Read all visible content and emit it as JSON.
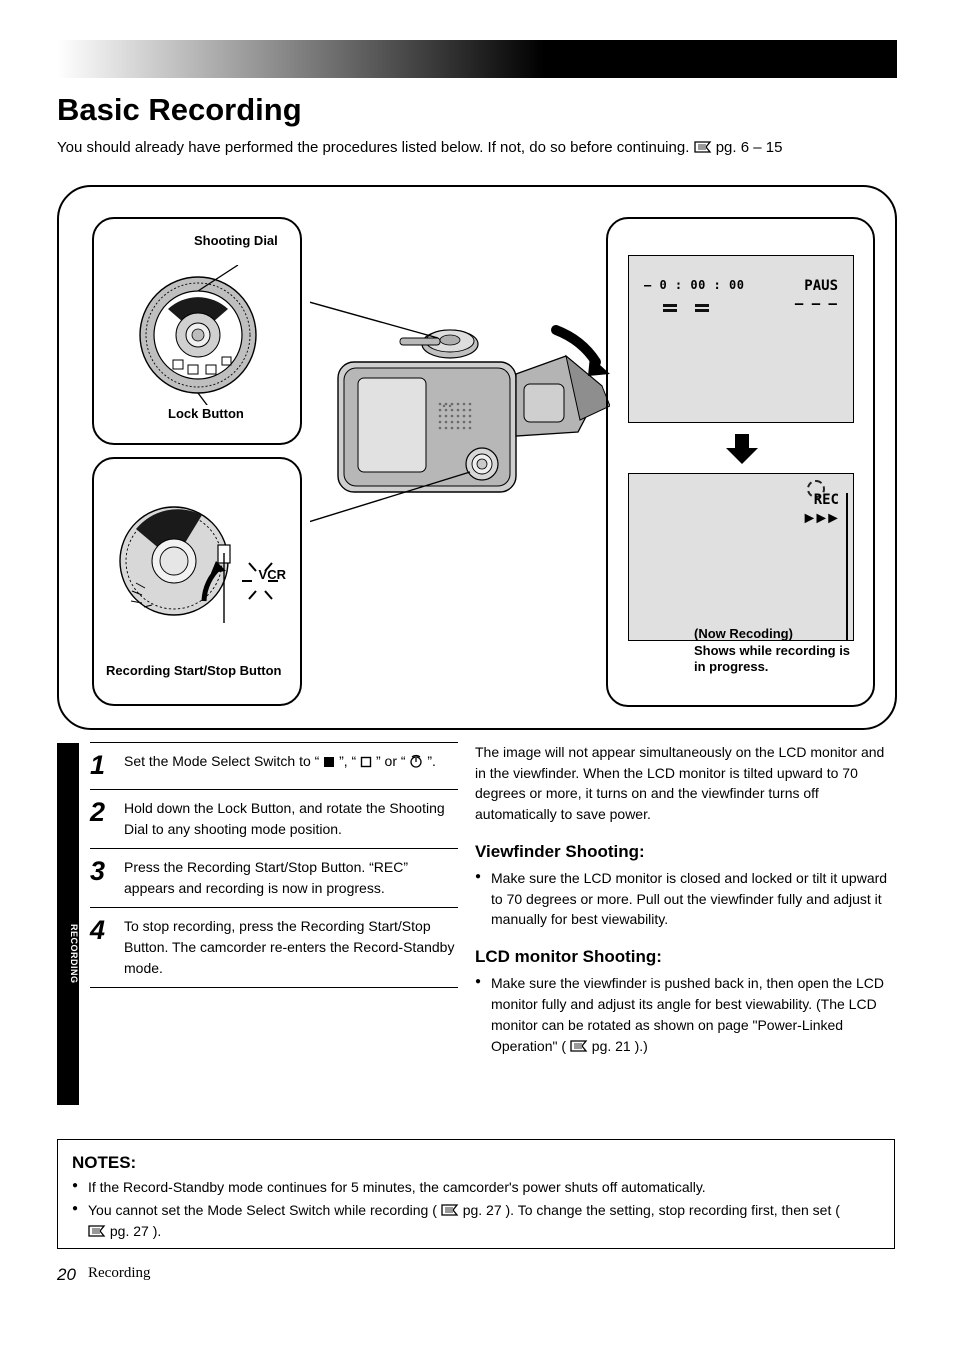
{
  "header": {
    "title": "Basic Recording",
    "intro_pre": "You should already have performed the procedures listed below. If not, do so before continuing. ",
    "intro_ref_1": "pg. 6 – 15"
  },
  "panel": {
    "box_ul": {
      "top_label": "Shooting Dial",
      "bottom_label": "Lock Button"
    },
    "box_ll": {
      "side_label": "VCR",
      "bottom_label": "Recording Start/Stop Button"
    },
    "box_r": {
      "lcd1": {
        "counter": "– 0 : 00 : 00",
        "status": "PAUS",
        "triple": "– – –"
      },
      "lcd2": {
        "rec": "REC",
        "play": "►►►"
      },
      "caption": "(Now Recoding)\nShows while recording is in progress."
    }
  },
  "sidebar": {
    "label": "RECORDING"
  },
  "steps": {
    "s1": {
      "n": "1",
      "text_a": "Set the Mode Select Switch to “",
      "text_b": "”, “",
      "text_c": "” or “",
      "text_d": "”."
    },
    "s2": {
      "n": "2",
      "text": "Hold down the Lock Button, and rotate the Shooting Dial to any shooting mode position."
    },
    "s3": {
      "n": "3",
      "text": "Press the Recording Start/Stop Button. “REC” appears and recording is now in progress."
    },
    "s4": {
      "n": "4",
      "text": "To stop recording, press the Recording Start/Stop Button. The camcorder re-enters the Record-Standby mode."
    }
  },
  "right": {
    "p1": "The image will not appear simultaneously on the LCD monitor and in the viewfinder. When the LCD monitor is tilted upward to 70 degrees or more, it turns on and the viewfinder turns off automatically to save power.",
    "h1": "Viewfinder Shooting:",
    "b1": "Make sure the LCD monitor is closed and locked or tilt it upward to 70 degrees or more. Pull out the viewfinder fully and adjust it manually for best viewability.",
    "h2": "LCD monitor Shooting:",
    "b2": "Make sure the viewfinder is pushed back in, then open the LCD monitor fully and adjust its angle for best viewability. (The LCD monitor can be rotated as shown on page \"Power-Linked Operation\" (",
    "b2_ref": "pg. 21",
    "b2_tail": ").)"
  },
  "notes": {
    "h": "NOTES:",
    "n1": "If the Record-Standby mode continues for 5 minutes, the camcorder's power shuts off automatically.",
    "n2_a": "You cannot set the Mode Select Switch while recording (",
    "n2_ref": "pg. 27",
    "n2_b": "). To change the setting, stop recording first, then set (",
    "n2_ref2": "pg. 27",
    "n2_c": ")."
  },
  "page": {
    "no": "20",
    "label": "Recording"
  },
  "colors": {
    "panel_border": "#000000",
    "lcd_bg": "#e0e0e0",
    "text": "#000000"
  }
}
